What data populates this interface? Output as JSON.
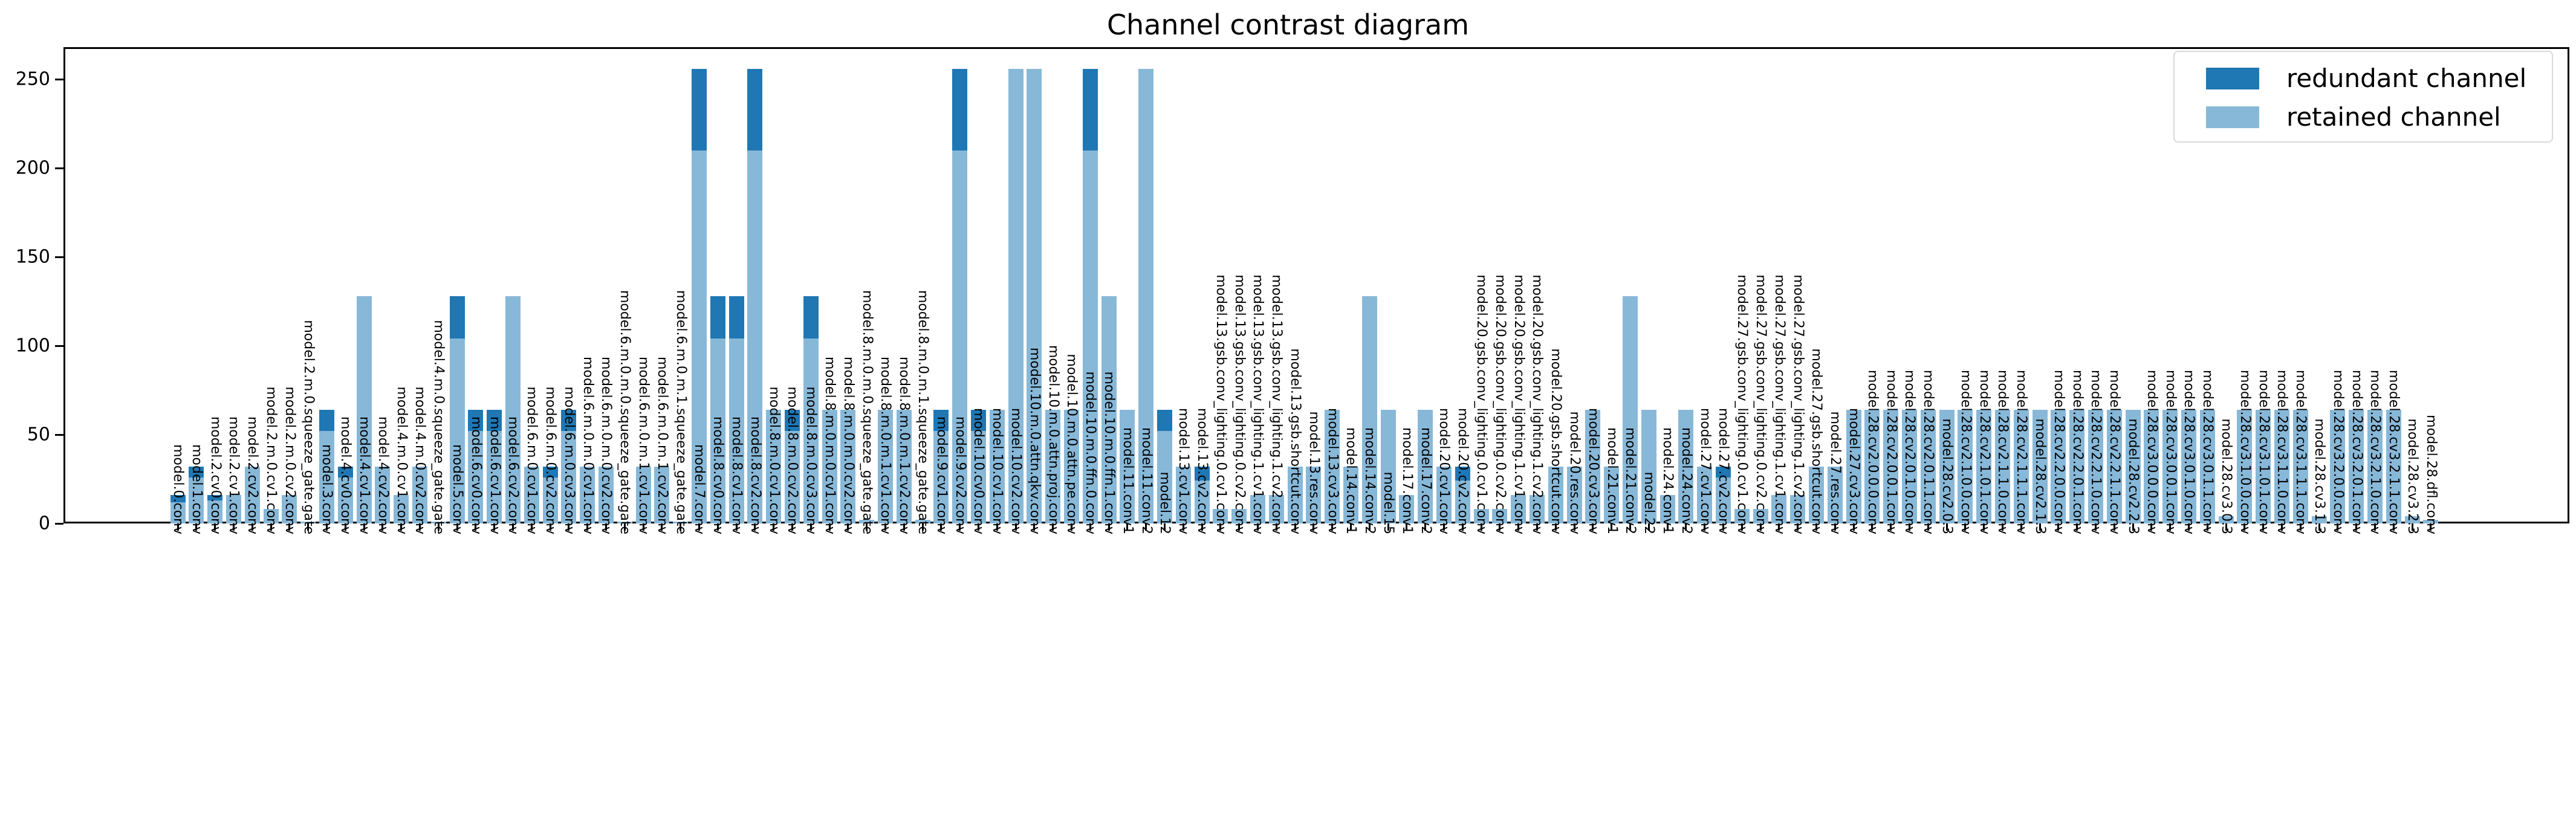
{
  "title": "Channel contrast diagram",
  "legend": {
    "items": [
      {
        "label": "redundant channel",
        "color": "#1f77b4"
      },
      {
        "label": "retained channel",
        "color": "#88b8d8"
      }
    ]
  },
  "axes": {
    "yticks": [
      "0",
      "50",
      "100",
      "150",
      "200",
      "250"
    ],
    "ytick_values": [
      0,
      50,
      100,
      150,
      200,
      250
    ]
  },
  "chart_data": {
    "type": "bar",
    "stacked": true,
    "title": "Channel contrast diagram",
    "xlabel": "",
    "ylabel": "",
    "ylim": [
      0,
      268
    ],
    "grid": false,
    "legend_position": "upper right",
    "bar_colors": {
      "retained": "#88b8d8",
      "redundant": "#1f77b4"
    },
    "categories": [
      "model.0.conv",
      "model.1.conv",
      "model.2.cv0.conv",
      "model.2.cv1.conv",
      "model.2.cv2.conv",
      "model.2.m.0.cv1.conv",
      "model.2.m.0.cv2.conv",
      "model.2.m.0.squeeze_gate.gate",
      "model.3.conv",
      "model.4.cv0.conv",
      "model.4.cv1.conv",
      "model.4.cv2.conv",
      "model.4.m.0.cv1.conv",
      "model.4.m.0.cv2.conv",
      "model.4.m.0.squeeze_gate.gate",
      "model.5.conv",
      "model.6.cv0.conv",
      "model.6.cv1.conv",
      "model.6.cv2.conv",
      "model.6.m.0.cv1.conv",
      "model.6.m.0.cv2.conv",
      "model.6.m.0.cv3.conv",
      "model.6.m.0.m.0.cv1.conv",
      "model.6.m.0.m.0.cv2.conv",
      "model.6.m.0.m.0.squeeze_gate.gate",
      "model.6.m.0.m.1.cv1.conv",
      "model.6.m.0.m.1.cv2.conv",
      "model.6.m.0.m.1.squeeze_gate.gate",
      "model.7.conv",
      "model.8.cv0.conv",
      "model.8.cv1.conv",
      "model.8.cv2.conv",
      "model.8.m.0.cv1.conv",
      "model.8.m.0.cv2.conv",
      "model.8.m.0.cv3.conv",
      "model.8.m.0.m.0.cv1.conv",
      "model.8.m.0.m.0.cv2.conv",
      "model.8.m.0.m.0.squeeze_gate.gate",
      "model.8.m.0.m.1.cv1.conv",
      "model.8.m.0.m.1.cv2.conv",
      "model.8.m.0.m.1.squeeze_gate.gate",
      "model.9.cv1.conv",
      "model.9.cv2.conv",
      "model.10.cv0.conv",
      "model.10.cv1.conv",
      "model.10.cv2.conv",
      "model.10.m.0.attn.qkv.conv",
      "model.10.m.0.attn.proj.conv",
      "model.10.m.0.attn.pe.conv",
      "model.10.m.0.ffn.0.conv",
      "model.10.m.0.ffn.1.conv",
      "model.11.conv1",
      "model.11.conv2",
      "model.12",
      "model.13.cv1.conv",
      "model.13.cv2.conv",
      "model.13.gsb.conv_lighting.0.cv1.conv",
      "model.13.gsb.conv_lighting.0.cv2.conv",
      "model.13.gsb.conv_lighting.1.cv1.conv",
      "model.13.gsb.conv_lighting.1.cv2.conv",
      "model.13.gsb.shortcut.conv",
      "model.13.res.conv",
      "model.13.cv3.conv",
      "model.14.conv1",
      "model.14.conv2",
      "model.15",
      "model.17.conv1",
      "model.17.conv2",
      "model.20.cv1.conv",
      "model.20.cv2.conv",
      "model.20.gsb.conv_lighting.0.cv1.conv",
      "model.20.gsb.conv_lighting.0.cv2.conv",
      "model.20.gsb.conv_lighting.1.cv1.conv",
      "model.20.gsb.conv_lighting.1.cv2.conv",
      "model.20.gsb.shortcut.conv",
      "model.20.res.conv",
      "model.20.cv3.conv",
      "model.21.conv1",
      "model.21.conv2",
      "model.22",
      "model.24.conv1",
      "model.24.conv2",
      "model.27.cv1.conv",
      "model.27.cv2.conv",
      "model.27.gsb.conv_lighting.0.cv1.conv",
      "model.27.gsb.conv_lighting.0.cv2.conv",
      "model.27.gsb.conv_lighting.1.cv1.conv",
      "model.27.gsb.conv_lighting.1.cv2.conv",
      "model.27.gsb.shortcut.conv",
      "model.27.res.conv",
      "model.27.cv3.conv",
      "model.28.cv2.0.0.0.conv",
      "model.28.cv2.0.0.1.conv",
      "model.28.cv2.0.1.0.conv",
      "model.28.cv2.0.1.1.conv",
      "model.28.cv2.0.3",
      "model.28.cv2.1.0.0.conv",
      "model.28.cv2.1.0.1.conv",
      "model.28.cv2.1.1.0.conv",
      "model.28.cv2.1.1.1.conv",
      "model.28.cv2.1.3",
      "model.28.cv2.2.0.0.conv",
      "model.28.cv2.2.0.1.conv",
      "model.28.cv2.2.1.0.conv",
      "model.28.cv2.2.1.1.conv",
      "model.28.cv2.2.3",
      "model.28.cv3.0.0.0.conv",
      "model.28.cv3.0.0.1.conv",
      "model.28.cv3.0.1.0.conv",
      "model.28.cv3.0.1.1.conv",
      "model.28.cv3.0.3",
      "model.28.cv3.1.0.0.conv",
      "model.28.cv3.1.0.1.conv",
      "model.28.cv3.1.1.0.conv",
      "model.28.cv3.1.1.1.conv",
      "model.28.cv3.1.3",
      "model.28.cv3.2.0.0.conv",
      "model.28.cv3.2.0.1.conv",
      "model.28.cv3.2.1.0.conv",
      "model.28.cv3.2.1.1.conv",
      "model.28.cv3.2.3",
      "model.28.dfl.conv"
    ],
    "series": [
      {
        "name": "retained channel",
        "color": "#88b8d8",
        "values": [
          12,
          26,
          13,
          16,
          32,
          8,
          16,
          1,
          52,
          26,
          128,
          32,
          16,
          32,
          1,
          104,
          52,
          52,
          128,
          32,
          26,
          52,
          32,
          32,
          1,
          32,
          32,
          1,
          210,
          104,
          104,
          210,
          64,
          52,
          104,
          64,
          64,
          2,
          64,
          64,
          2,
          52,
          210,
          52,
          64,
          256,
          256,
          64,
          64,
          210,
          128,
          64,
          256,
          52,
          32,
          24,
          8,
          8,
          16,
          16,
          32,
          32,
          64,
          32,
          128,
          64,
          16,
          64,
          32,
          24,
          8,
          8,
          16,
          16,
          32,
          32,
          64,
          32,
          128,
          64,
          16,
          64,
          32,
          26,
          8,
          8,
          16,
          16,
          32,
          32,
          64,
          64,
          64,
          64,
          64,
          64,
          64,
          64,
          64,
          64,
          64,
          64,
          64,
          64,
          64,
          64,
          64,
          64,
          64,
          64,
          4,
          64,
          64,
          64,
          64,
          4,
          64,
          64,
          64,
          64,
          4,
          2
        ]
      },
      {
        "name": "redundant channel",
        "color": "#1f77b4",
        "values": [
          4,
          6,
          3,
          0,
          0,
          0,
          0,
          0,
          12,
          6,
          0,
          0,
          0,
          0,
          0,
          24,
          12,
          12,
          0,
          0,
          6,
          12,
          0,
          0,
          0,
          0,
          0,
          0,
          46,
          24,
          24,
          46,
          0,
          12,
          24,
          0,
          0,
          0,
          0,
          0,
          0,
          12,
          46,
          12,
          0,
          0,
          0,
          0,
          0,
          46,
          0,
          0,
          0,
          12,
          0,
          8,
          0,
          0,
          0,
          0,
          0,
          0,
          0,
          0,
          0,
          0,
          0,
          0,
          0,
          8,
          0,
          0,
          0,
          0,
          0,
          0,
          0,
          0,
          0,
          0,
          0,
          0,
          0,
          6,
          0,
          0,
          0,
          0,
          0,
          0,
          0,
          0,
          0,
          0,
          0,
          0,
          0,
          0,
          0,
          0,
          0,
          0,
          0,
          0,
          0,
          0,
          0,
          0,
          0,
          0,
          0,
          0,
          0,
          0,
          0,
          0,
          0,
          0,
          0,
          0,
          0,
          0
        ]
      }
    ]
  },
  "layout_text": {
    "note": ""
  }
}
